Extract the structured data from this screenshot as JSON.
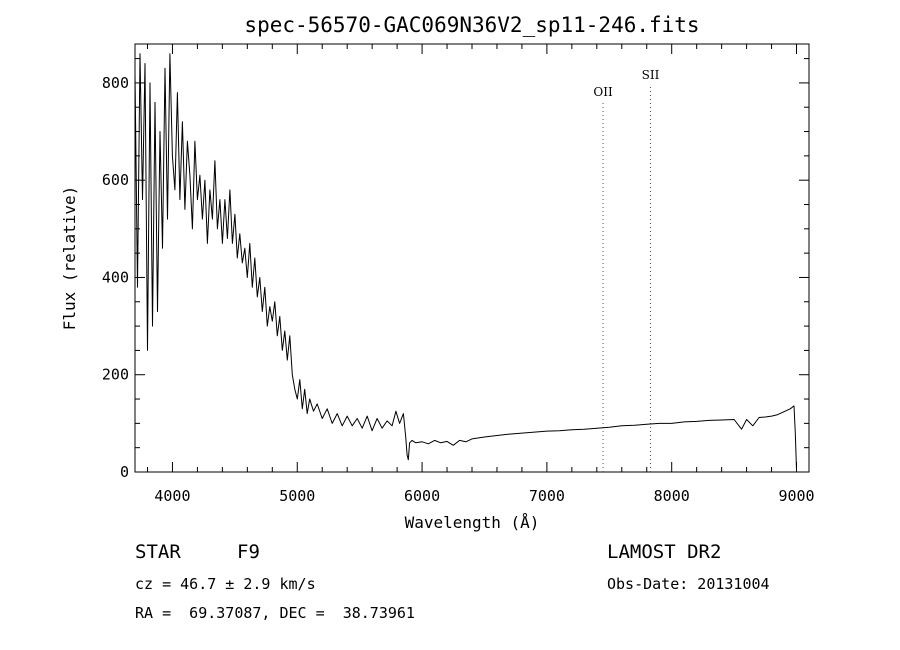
{
  "chart_data": {
    "type": "line",
    "title": "spec-56570-GAC069N36V2_sp11-246.fits",
    "xlabel": "Wavelength (Å)",
    "ylabel": "Flux (relative)",
    "xlim": [
      3700,
      9100
    ],
    "ylim": [
      0,
      880
    ],
    "xticks": [
      4000,
      5000,
      6000,
      7000,
      8000,
      9000
    ],
    "xtick_labels": [
      "4000",
      "5000",
      "6000",
      "7000",
      "8000",
      "9000"
    ],
    "yticks": [
      0,
      200,
      400,
      600,
      800
    ],
    "ytick_labels": [
      "0",
      "200",
      "400",
      "600",
      "800"
    ],
    "grid": false,
    "series": [
      {
        "x": [
          3700,
          3720,
          3740,
          3760,
          3780,
          3800,
          3820,
          3840,
          3860,
          3880,
          3900,
          3920,
          3940,
          3960,
          3980,
          4000,
          4020,
          4040,
          4060,
          4080,
          4100,
          4120,
          4140,
          4160,
          4180,
          4200,
          4220,
          4240,
          4260,
          4280,
          4300,
          4320,
          4340,
          4360,
          4380,
          4400,
          4420,
          4440,
          4460,
          4480,
          4500,
          4520,
          4540,
          4560,
          4580,
          4600,
          4620,
          4640,
          4660,
          4680,
          4700,
          4720,
          4740,
          4760,
          4780,
          4800,
          4820,
          4840,
          4860,
          4880,
          4900,
          4920,
          4940,
          4960,
          4980,
          5000,
          5020,
          5040,
          5060,
          5080,
          5100,
          5130,
          5160,
          5200,
          5240,
          5280,
          5320,
          5360,
          5400,
          5440,
          5480,
          5520,
          5560,
          5600,
          5640,
          5680,
          5720,
          5760,
          5790,
          5820,
          5850,
          5870,
          5880,
          5890,
          5900,
          5920,
          5950,
          6000,
          6050,
          6100,
          6150,
          6200,
          6250,
          6300,
          6350,
          6400,
          6500,
          6600,
          6700,
          6800,
          6900,
          7000,
          7100,
          7200,
          7300,
          7400,
          7500,
          7600,
          7700,
          7800,
          7900,
          8000,
          8100,
          8200,
          8300,
          8400,
          8500,
          8560,
          8600,
          8650,
          8700,
          8750,
          8800,
          8850,
          8900,
          8950,
          8980,
          8990,
          9000
        ],
        "values": [
          820,
          380,
          860,
          560,
          840,
          250,
          800,
          300,
          760,
          330,
          700,
          460,
          830,
          520,
          860,
          650,
          580,
          780,
          560,
          720,
          540,
          680,
          610,
          500,
          680,
          560,
          610,
          520,
          600,
          470,
          580,
          520,
          640,
          500,
          560,
          470,
          560,
          480,
          580,
          470,
          530,
          440,
          490,
          430,
          460,
          400,
          470,
          380,
          440,
          360,
          400,
          330,
          380,
          300,
          340,
          310,
          350,
          280,
          320,
          250,
          290,
          230,
          280,
          200,
          170,
          150,
          190,
          130,
          170,
          120,
          150,
          125,
          140,
          110,
          130,
          100,
          120,
          95,
          115,
          95,
          110,
          90,
          115,
          85,
          110,
          90,
          105,
          95,
          125,
          100,
          120,
          70,
          35,
          25,
          60,
          65,
          60,
          62,
          58,
          65,
          60,
          63,
          55,
          65,
          62,
          68,
          72,
          75,
          78,
          80,
          82,
          84,
          85,
          87,
          88,
          90,
          92,
          95,
          96,
          98,
          100,
          100,
          103,
          104,
          106,
          107,
          108,
          88,
          108,
          95,
          112,
          113,
          115,
          118,
          124,
          130,
          136,
          80,
          5
        ]
      }
    ],
    "annotations": [
      {
        "label": "OII",
        "x": 7450
      },
      {
        "label": "SII",
        "x": 7830
      }
    ]
  },
  "info": {
    "object_class": "STAR",
    "subclass": "F9",
    "cz": "cz = 46.7 ± 2.9 km/s",
    "coords": "RA =  69.37087, DEC =  38.73961",
    "survey": "LAMOST DR2",
    "obs_date": "Obs-Date: 20131004"
  }
}
